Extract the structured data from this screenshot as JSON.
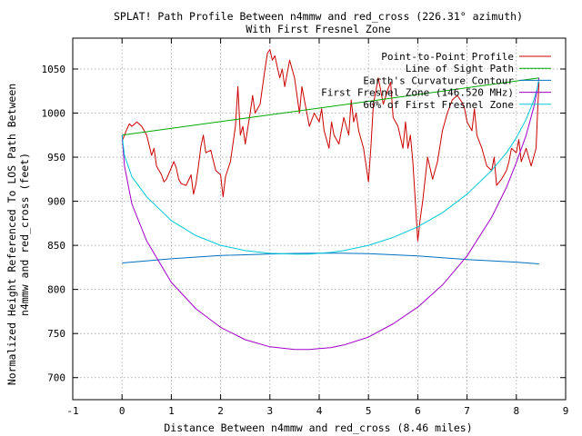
{
  "chart_data": {
    "type": "line",
    "title_line1": "SPLAT! Path Profile Between n4mmw and red_cross (226.31° azimuth)",
    "title_line2": "With First Fresnel Zone",
    "xlabel": "Distance Between n4mmw and red_cross (8.46 miles)",
    "ylabel_line1": "Normalized Height Referenced To LOS Path Between",
    "ylabel_line2": "n4mmw and red_cross (feet)",
    "xlim": [
      -1,
      9
    ],
    "ylim": [
      675,
      1085
    ],
    "x_ticks": [
      "-1",
      "0",
      "1",
      "2",
      "3",
      "4",
      "5",
      "6",
      "7",
      "8",
      "9"
    ],
    "y_ticks": [
      "700",
      "750",
      "800",
      "850",
      "900",
      "950",
      "1000",
      "1050"
    ],
    "x_tick_values": [
      -1,
      0,
      1,
      2,
      3,
      4,
      5,
      6,
      7,
      8,
      9
    ],
    "y_tick_values": [
      700,
      750,
      800,
      850,
      900,
      950,
      1000,
      1050
    ],
    "grid": true,
    "legend_position": "top-right",
    "series": [
      {
        "name": "Point-to-Point Profile",
        "color": "#cc0000",
        "x": [
          0,
          0.05,
          0.1,
          0.15,
          0.2,
          0.3,
          0.4,
          0.5,
          0.6,
          0.65,
          0.7,
          0.8,
          0.85,
          0.9,
          1.0,
          1.05,
          1.1,
          1.15,
          1.2,
          1.3,
          1.4,
          1.45,
          1.5,
          1.55,
          1.6,
          1.65,
          1.7,
          1.8,
          1.9,
          2.0,
          2.05,
          2.1,
          2.2,
          2.3,
          2.35,
          2.4,
          2.45,
          2.5,
          2.6,
          2.65,
          2.7,
          2.8,
          2.9,
          2.95,
          3.0,
          3.05,
          3.1,
          3.2,
          3.25,
          3.3,
          3.4,
          3.5,
          3.55,
          3.6,
          3.65,
          3.7,
          3.8,
          3.9,
          4.0,
          4.05,
          4.1,
          4.2,
          4.25,
          4.3,
          4.4,
          4.5,
          4.6,
          4.65,
          4.7,
          4.75,
          4.8,
          4.9,
          5.0,
          5.05,
          5.1,
          5.2,
          5.3,
          5.4,
          5.45,
          5.5,
          5.6,
          5.7,
          5.75,
          5.8,
          5.85,
          5.9,
          5.95,
          6.0,
          6.05,
          6.1,
          6.2,
          6.3,
          6.35,
          6.4,
          6.5,
          6.6,
          6.7,
          6.8,
          6.9,
          6.95,
          7.0,
          7.05,
          7.1,
          7.15,
          7.2,
          7.3,
          7.4,
          7.5,
          7.55,
          7.6,
          7.7,
          7.8,
          7.85,
          7.9,
          8.0,
          8.05,
          8.1,
          8.2,
          8.3,
          8.35,
          8.4,
          8.43,
          8.46
        ],
        "y": [
          968,
          975,
          982,
          988,
          985,
          990,
          985,
          975,
          952,
          960,
          940,
          930,
          922,
          925,
          938,
          945,
          938,
          925,
          920,
          918,
          930,
          908,
          920,
          940,
          962,
          975,
          955,
          958,
          935,
          930,
          905,
          928,
          945,
          985,
          1030,
          975,
          985,
          965,
          1000,
          1020,
          1000,
          1010,
          1050,
          1068,
          1072,
          1060,
          1065,
          1040,
          1050,
          1030,
          1060,
          1040,
          1020,
          1000,
          1030,
          1015,
          985,
          1000,
          990,
          1005,
          980,
          960,
          990,
          975,
          965,
          995,
          975,
          1015,
          990,
          1000,
          980,
          960,
          922,
          962,
          1010,
          1040,
          1010,
          1028,
          1035,
          995,
          985,
          960,
          990,
          960,
          975,
          945,
          900,
          855,
          880,
          900,
          950,
          925,
          935,
          945,
          980,
          1000,
          1015,
          1020,
          1012,
          1005,
          990,
          985,
          980,
          1005,
          975,
          960,
          940,
          935,
          950,
          918,
          925,
          935,
          945,
          960,
          955,
          970,
          945,
          960,
          940,
          950,
          960,
          1000,
          1035
        ]
      },
      {
        "name": "Line of Sight Path",
        "color": "#00aa00",
        "x": [
          0,
          8.46
        ],
        "y": [
          975,
          1040
        ]
      },
      {
        "name": "Earth's Curvature Contour",
        "color": "#0070c0",
        "x": [
          0,
          1,
          2,
          3,
          3.5,
          4,
          4.23,
          4.5,
          5,
          6,
          7,
          8,
          8.46
        ],
        "y": [
          830,
          834.8,
          838.5,
          840.2,
          840.9,
          841.2,
          841.2,
          841.1,
          840.5,
          838,
          834,
          831,
          829
        ]
      },
      {
        "name": "First Fresnel Zone (146.520 MHz)",
        "color": "#a000c8",
        "x": [
          0,
          0.05,
          0.2,
          0.5,
          1.0,
          1.5,
          2.0,
          2.5,
          3.0,
          3.5,
          3.8,
          4.0,
          4.23,
          4.5,
          5.0,
          5.5,
          6.0,
          6.5,
          7.0,
          7.5,
          7.8,
          8.0,
          8.2,
          8.35,
          8.42,
          8.46
        ],
        "y": [
          975,
          940,
          897,
          855,
          808,
          778,
          757,
          743,
          735,
          732,
          732,
          733,
          734,
          737,
          746,
          761,
          780,
          805,
          838,
          882,
          916,
          944,
          975,
          1006,
          1025,
          1040
        ]
      },
      {
        "name": "60% of First Fresnel Zone",
        "color": "#00c8d8",
        "x": [
          0,
          0.05,
          0.2,
          0.5,
          1.0,
          1.5,
          2.0,
          2.5,
          3.0,
          3.5,
          3.8,
          4.0,
          4.23,
          4.5,
          5.0,
          5.5,
          6.0,
          6.5,
          7.0,
          7.5,
          7.8,
          8.0,
          8.2,
          8.35,
          8.42,
          8.46
        ],
        "y": [
          975,
          952,
          928,
          905,
          878,
          861,
          850,
          844,
          841,
          840,
          840,
          841,
          842,
          844,
          850,
          859,
          871,
          887,
          908,
          935,
          955,
          972,
          993,
          1014,
          1027,
          1038
        ]
      }
    ]
  }
}
